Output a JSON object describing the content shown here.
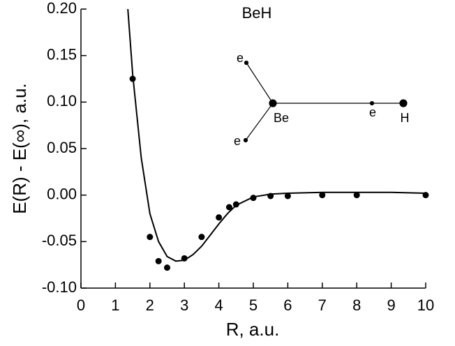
{
  "chart_data": {
    "type": "scatter",
    "title": "BeH",
    "x_label": "R, a.u.",
    "y_label": "E(R) - E(∞), a.u.",
    "x": [
      1.5,
      2.0,
      2.25,
      2.5,
      3.0,
      3.5,
      4.0,
      4.3,
      4.5,
      5.0,
      5.5,
      6.0,
      7.0,
      8.0,
      10.0
    ],
    "values": [
      0.125,
      -0.045,
      -0.071,
      -0.078,
      -0.068,
      -0.045,
      -0.024,
      -0.013,
      -0.01,
      -0.003,
      -0.001,
      -0.001,
      0.0,
      0.0,
      0.0
    ],
    "color": "#000000",
    "curve": {
      "x": [
        1.36,
        1.5,
        1.75,
        2.0,
        2.25,
        2.5,
        2.75,
        3.0,
        3.25,
        3.5,
        3.75,
        4.0,
        4.25,
        4.5,
        5.0,
        5.5,
        6.0,
        7.0,
        8.0,
        9.0,
        10.0
      ],
      "values": [
        0.2,
        0.13,
        0.04,
        -0.02,
        -0.05,
        -0.066,
        -0.071,
        -0.07,
        -0.064,
        -0.055,
        -0.043,
        -0.031,
        -0.02,
        -0.011,
        -0.002,
        0.001,
        0.002,
        0.003,
        0.003,
        0.003,
        0.002
      ]
    },
    "xlim": [
      0,
      10
    ],
    "ylim": [
      -0.1,
      0.2
    ],
    "xticks": [
      0,
      1,
      2,
      3,
      4,
      5,
      6,
      7,
      8,
      9,
      10
    ],
    "yticks": [
      {
        "value": 0.2,
        "label": "0.20"
      },
      0.15,
      {
        "value": 0.1,
        "label": "0.10"
      },
      0.05,
      {
        "value": 0,
        "label": "0.00"
      },
      -0.05,
      {
        "value": -0.1,
        "label": "-0.10"
      }
    ],
    "inset_labels": [
      "e",
      "e",
      "Be",
      "e",
      "H"
    ]
  }
}
